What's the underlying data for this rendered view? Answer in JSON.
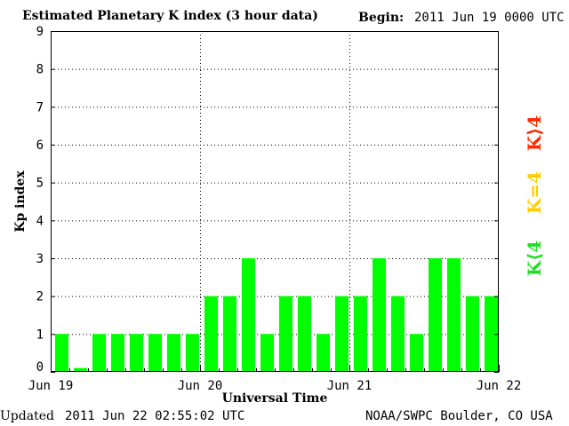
{
  "header": {
    "title": "Estimated Planetary K index (3 hour data)",
    "begin_label": "Begin:",
    "begin_value": "2011 Jun 19 0000 UTC"
  },
  "footer": {
    "updated_label": "Updated",
    "updated_value": "2011 Jun 22 02:55:02 UTC",
    "source": "NOAA/SWPC Boulder, CO USA"
  },
  "legend": {
    "above": "K⟩4",
    "equal": "K=4",
    "below": "K⟨4"
  },
  "colors": {
    "bar": "#00ff00",
    "above": "#ff2a00",
    "equal": "#ffcc00",
    "below": "#22dd22"
  },
  "chart_data": {
    "type": "bar",
    "ylabel": "Kp index",
    "xlabel": "Universal Time",
    "ylim": [
      0,
      9
    ],
    "xlim": [
      0,
      72
    ],
    "y_ticks": [
      0,
      1,
      2,
      3,
      4,
      5,
      6,
      7,
      8,
      9
    ],
    "x_ticks": [
      {
        "x": 0,
        "label": "Jun 19"
      },
      {
        "x": 24,
        "label": "Jun 20"
      },
      {
        "x": 48,
        "label": "Jun 21"
      },
      {
        "x": 72,
        "label": "Jun 22"
      }
    ],
    "grid": "dotted",
    "interval_hours": 3,
    "values": [
      1,
      0.1,
      1,
      1,
      1,
      1,
      1,
      1,
      2,
      2,
      3,
      1,
      2,
      2,
      1,
      2,
      2,
      3,
      2,
      1,
      3,
      3,
      2,
      2
    ]
  }
}
